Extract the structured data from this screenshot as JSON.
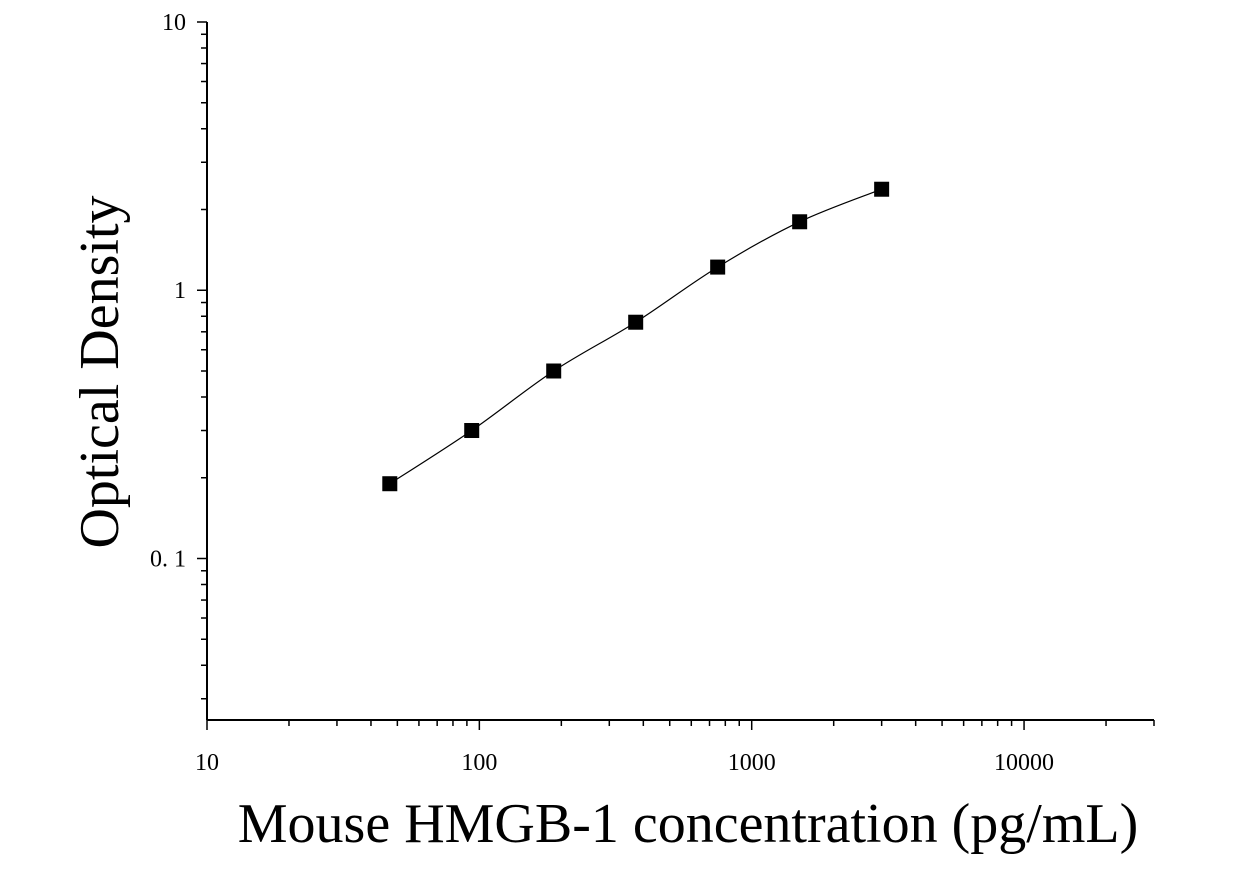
{
  "chart_data": {
    "type": "scatter",
    "title": "",
    "xlabel": "Mouse HMGB-1 concentration (pg/mL)",
    "ylabel": "Optical Density",
    "x_scale": "log",
    "y_scale": "log",
    "xlim": [
      10,
      30000
    ],
    "ylim": [
      0.025,
      10
    ],
    "x_tick_labels": [
      "10",
      "100",
      "1000",
      "10000"
    ],
    "y_tick_labels": [
      "0. 1",
      "1",
      "10"
    ],
    "grid": false,
    "legend": "none",
    "series": [
      {
        "x": [
          46.9,
          93.75,
          187.5,
          375,
          750,
          1500,
          3000
        ],
        "y": [
          0.19,
          0.3,
          0.5,
          0.76,
          1.22,
          1.8,
          2.38
        ],
        "marker": "square",
        "color": "#000000",
        "fit_curve": true
      }
    ]
  }
}
